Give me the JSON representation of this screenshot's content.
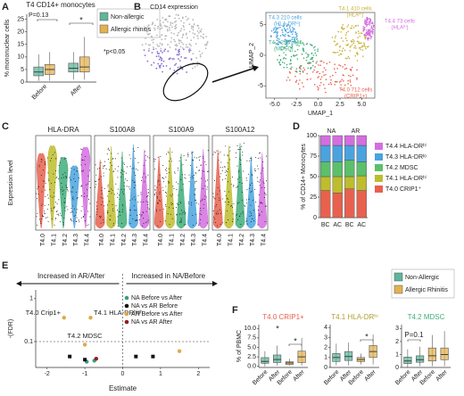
{
  "panel_labels": [
    "A",
    "B",
    "C",
    "D",
    "E",
    "F"
  ],
  "chart_data": [
    {
      "type": "box",
      "title": "T4 CD14+ monocytes",
      "ylabel": "% mononuclear cells",
      "ylim": [
        0,
        27
      ],
      "yticks": [
        0,
        5,
        10,
        15,
        20,
        25
      ],
      "categories": [
        "Before",
        "After"
      ],
      "series": [
        {
          "name": "Non-allergic",
          "color": "#5fb59c",
          "boxes": [
            {
              "low": 0.5,
              "q1": 2.5,
              "median": 4,
              "q3": 6,
              "high": 11
            },
            {
              "low": 1,
              "q1": 4,
              "median": 5.5,
              "q3": 7.5,
              "high": 12
            }
          ]
        },
        {
          "name": "Allergic rhinitis",
          "color": "#e3b24f",
          "boxes": [
            {
              "low": 0.5,
              "q1": 3,
              "median": 5,
              "q3": 7,
              "high": 12
            },
            {
              "low": 1,
              "q1": 4,
              "median": 6,
              "q3": 10,
              "high": 18
            }
          ]
        }
      ],
      "annotations": [
        "P=0.13",
        "*",
        "*p<0.05"
      ]
    },
    {
      "type": "embedding",
      "title": "CD14 expression",
      "xlabel": "UMAP_1",
      "ylabel": "UMAP_2",
      "xlim": [
        -6,
        6.5
      ],
      "ylim": [
        -7,
        7
      ],
      "xticks": [
        {
          "value": -5,
          "label": "-5.0"
        },
        {
          "value": -2.5,
          "label": "-2.5"
        },
        {
          "value": 0,
          "label": "0.0"
        },
        {
          "value": 2.5,
          "label": "2.5"
        },
        {
          "value": 5,
          "label": "5.0"
        }
      ],
      "yticks": [
        -5,
        0,
        5
      ],
      "clusters": [
        {
          "label": "T4.0 712 cells",
          "sub": "(CRIP1+)",
          "color": "#e8614f"
        },
        {
          "label": "T4.1 410 cells",
          "sub": "(HLAʰⁱ)",
          "color": "#c9b030"
        },
        {
          "label": "T4.2 235 cells",
          "sub": "(MDSC)",
          "color": "#3fae7a"
        },
        {
          "label": "T4.3 210 cells",
          "sub": "(HLA-DRˡᵒ)",
          "color": "#4aa3df"
        },
        {
          "label": "T4.4 73 cells",
          "sub": "(HLAʰⁱ)",
          "color": "#d46ee0"
        }
      ]
    },
    {
      "type": "violin",
      "ylabel": "Expression level",
      "genes": [
        "HLA-DRA",
        "S100A8",
        "S100A9",
        "S100A12"
      ],
      "categories": [
        "T4.0",
        "T4.1",
        "T4.2",
        "T4.3",
        "T4.4"
      ],
      "colors": [
        "#e8614f",
        "#bdbd2e",
        "#3fae7a",
        "#4aa3df",
        "#d46ee0"
      ]
    },
    {
      "type": "bar",
      "stacked": true,
      "ylabel": "% of CD14+ Monocytes",
      "ylim": [
        0,
        100
      ],
      "yticks": [
        0,
        25,
        50,
        75,
        100
      ],
      "groups": [
        "NA",
        "AR"
      ],
      "categories": [
        "BC",
        "AC",
        "BC",
        "AC"
      ],
      "series": [
        {
          "name": "T4.0 CRIP1⁺",
          "color": "#e8614f",
          "values": [
            33,
            30,
            35,
            33
          ]
        },
        {
          "name": "T4.1 HLA-DRʰⁱ",
          "color": "#bdbd2e",
          "values": [
            17,
            20,
            15,
            18
          ]
        },
        {
          "name": "T4.2 MDSC",
          "color": "#5cbf6a",
          "values": [
            18,
            18,
            20,
            17
          ]
        },
        {
          "name": "T4.3 HLA-DRˡᵒ",
          "color": "#4aa3df",
          "values": [
            20,
            20,
            18,
            20
          ]
        },
        {
          "name": "T4.4 HLA-DRʰⁱ",
          "color": "#d46ee0",
          "values": [
            12,
            12,
            12,
            12
          ]
        }
      ]
    },
    {
      "type": "scatter",
      "xlabel": "Estimate",
      "ylabel": "-(FDR)",
      "log_y": true,
      "xlim": [
        -2.3,
        2.3
      ],
      "xticks": [
        -2,
        -1,
        0,
        1,
        2
      ],
      "ylim": [
        0.025,
        1.6
      ],
      "yticks": [
        1,
        0.1
      ],
      "hline": 0.1,
      "vline": 0,
      "arrows": [
        "Increased in AR/After",
        "Increased in NA/Before"
      ],
      "annotations": [
        "T4.0 Crip1+",
        "T4.1 HLA-DRʰⁱᵍʰ",
        "T4.2 MDSC"
      ],
      "series": [
        {
          "name": "NA Before vs After",
          "color": "#3a9e84",
          "marker": "circle",
          "x": [
            -0.95,
            -0.75
          ],
          "values": [
            0.034,
            0.036
          ]
        },
        {
          "name": "NA vs AR Before",
          "color": "#111111",
          "marker": "square",
          "x": [
            -1.4,
            -1.0,
            0.35,
            0.8
          ],
          "values": [
            0.045,
            0.038,
            0.045,
            0.045
          ]
        },
        {
          "name": "AR Before vs After",
          "color": "#e0a84a",
          "marker": "circle",
          "x": [
            -1.55,
            -0.85,
            -1.0,
            1.5
          ],
          "values": [
            0.36,
            0.36,
            0.085,
            0.06
          ]
        },
        {
          "name": "NA vs AR After",
          "color": "#8b2020",
          "marker": "circle",
          "x": [
            -0.7
          ],
          "values": [
            0.04
          ]
        }
      ]
    },
    {
      "type": "box",
      "title": "T4.0 CRIP1+",
      "title_color": "#e8614f",
      "ylabel": "% of PBMC",
      "ylim": [
        -0.3,
        11
      ],
      "yticks": [
        {
          "value": 0,
          "label": "0.0"
        },
        {
          "value": 2.5,
          "label": "2.5"
        },
        {
          "value": 5,
          "label": "5.0"
        },
        {
          "value": 7.5,
          "label": "7.5"
        },
        {
          "value": 10,
          "label": "10.0"
        }
      ],
      "categories": [
        "Before",
        "After",
        "Before",
        "After"
      ],
      "series": [
        {
          "name": "Non-Allergic",
          "color": "#5fb59c",
          "boxes": [
            {
              "low": 0,
              "q1": 0.8,
              "median": 1.3,
              "q3": 2.3,
              "high": 4
            },
            {
              "low": 0.2,
              "q1": 1,
              "median": 1.8,
              "q3": 3,
              "high": 5.5
            }
          ]
        },
        {
          "name": "Allergic Rhinitis",
          "color": "#e3b24f",
          "boxes": [
            {
              "low": 0.2,
              "q1": 0.5,
              "median": 0.9,
              "q3": 1.2,
              "high": 2
            },
            {
              "low": 0.2,
              "q1": 1,
              "median": 2.5,
              "q3": 4,
              "high": 7.5
            }
          ]
        }
      ],
      "annotations": [
        "*",
        "*"
      ]
    },
    {
      "type": "box",
      "title": "T4.1 HLA-DRʰⁱ",
      "title_color": "#b0a030",
      "ylim": [
        0,
        4.3
      ],
      "yticks": [
        0,
        1,
        2,
        3,
        4
      ],
      "categories": [
        "Before",
        "After",
        "Before",
        "After"
      ],
      "series": [
        {
          "color": "#5fb59c",
          "boxes": [
            {
              "low": 0.2,
              "q1": 0.6,
              "median": 1,
              "q3": 1.4,
              "high": 2.4
            },
            {
              "low": 0.2,
              "q1": 0.7,
              "median": 1.1,
              "q3": 1.6,
              "high": 2.5
            }
          ]
        },
        {
          "color": "#e3b24f",
          "boxes": [
            {
              "low": 0.3,
              "q1": 0.6,
              "median": 0.8,
              "q3": 1,
              "high": 1.4
            },
            {
              "low": 0.3,
              "q1": 1,
              "median": 1.6,
              "q3": 2.2,
              "high": 3.3
            }
          ]
        }
      ],
      "annotations": [
        "*"
      ]
    },
    {
      "type": "box",
      "title": "T4.2 MDSC",
      "title_color": "#3fae7a",
      "ylim": [
        0,
        3.3
      ],
      "yticks": [
        0,
        1,
        2,
        3
      ],
      "categories": [
        "Before",
        "After",
        "Before",
        "After"
      ],
      "series": [
        {
          "color": "#5fb59c",
          "boxes": [
            {
              "low": 0,
              "q1": 0.3,
              "median": 0.5,
              "q3": 0.8,
              "high": 1.4
            },
            {
              "low": 0.1,
              "q1": 0.4,
              "median": 0.6,
              "q3": 0.9,
              "high": 1.6
            }
          ]
        },
        {
          "color": "#e3b24f",
          "boxes": [
            {
              "low": 0.1,
              "q1": 0.5,
              "median": 0.9,
              "q3": 1.5,
              "high": 2.5
            },
            {
              "low": 0.1,
              "q1": 0.6,
              "median": 1,
              "q3": 1.5,
              "high": 2.8
            }
          ]
        }
      ],
      "annotations": [
        "P=0.1"
      ]
    }
  ]
}
